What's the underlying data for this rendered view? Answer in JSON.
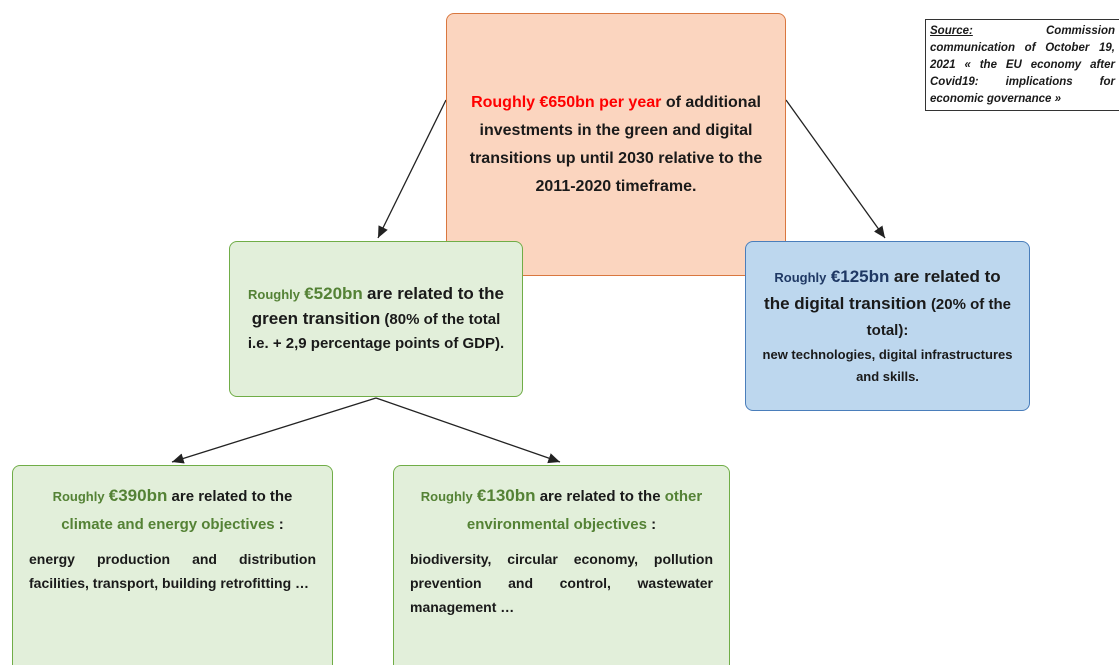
{
  "top": {
    "runs": [
      "Roughly €650bn per year",
      "of additional investments in the green and digital transitions up until 2030 relative to the 2011-2020 timeframe."
    ]
  },
  "green": {
    "runs": [
      "Roughly",
      "€520bn",
      "are related to the green transition",
      "(80% of the total i.e. + 2,9 percentage points of GDP)."
    ]
  },
  "digital": {
    "runs": [
      "Roughly",
      "€125bn",
      "are related to the digital transition",
      "(20% of the total):",
      "new technologies, digital infrastructures and skills."
    ]
  },
  "climate": {
    "runs": [
      "Roughly",
      "€390bn",
      "are related to the",
      "climate and energy objectives",
      ":"
    ],
    "body": "energy production and distribution facilities, transport, building retrofitting …"
  },
  "environment": {
    "runs": [
      "Roughly",
      "€130bn",
      "are related to the",
      "other environmental objectives",
      ":"
    ],
    "body": "biodiversity, circular economy, pollution prevention and control, wastewater management …"
  },
  "source": {
    "label": "Source:",
    "text": "Commission communication of October 19, 2021 « the EU economy after Covid19: implications for economic governance »"
  }
}
